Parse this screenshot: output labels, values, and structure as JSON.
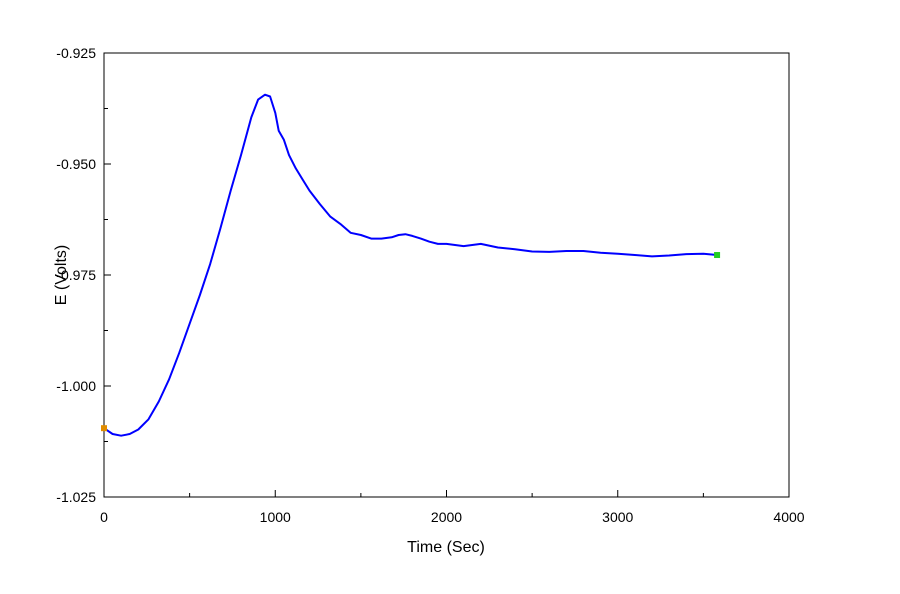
{
  "chart_data": {
    "type": "line",
    "title": "",
    "xlabel": "Time (Sec)",
    "ylabel": "E (Volts)",
    "xlim": [
      0,
      4000
    ],
    "ylim": [
      -1.025,
      -0.925
    ],
    "grid": false,
    "legend": "none",
    "x_ticks": [
      0,
      1000,
      2000,
      3000,
      4000
    ],
    "x_tick_labels": [
      "0",
      "1000",
      "2000",
      "3000",
      "4000"
    ],
    "y_ticks": [
      -0.925,
      -0.95,
      -0.975,
      -1.0,
      -1.025
    ],
    "y_tick_labels": [
      "-0.925",
      "-0.950",
      "-0.975",
      "-1.000",
      "-1.025"
    ],
    "series": [
      {
        "color": "#0000ff",
        "x": [
          0,
          50,
          100,
          150,
          200,
          260,
          320,
          380,
          440,
          500,
          560,
          620,
          680,
          740,
          800,
          860,
          900,
          940,
          970,
          1000,
          1020,
          1050,
          1080,
          1120,
          1160,
          1200,
          1260,
          1320,
          1380,
          1440,
          1500,
          1560,
          1620,
          1680,
          1720,
          1760,
          1800,
          1850,
          1900,
          1950,
          2000,
          2100,
          2200,
          2300,
          2400,
          2500,
          2600,
          2700,
          2800,
          2900,
          3000,
          3100,
          3200,
          3300,
          3400,
          3500,
          3580
        ],
        "y": [
          -1.0095,
          -1.0108,
          -1.0112,
          -1.0108,
          -1.0098,
          -1.0075,
          -1.0035,
          -0.9985,
          -0.9925,
          -0.986,
          -0.9795,
          -0.9725,
          -0.9645,
          -0.956,
          -0.948,
          -0.9395,
          -0.9355,
          -0.9344,
          -0.9348,
          -0.9385,
          -0.9425,
          -0.9445,
          -0.948,
          -0.951,
          -0.9535,
          -0.956,
          -0.959,
          -0.9618,
          -0.9635,
          -0.9655,
          -0.966,
          -0.9668,
          -0.9668,
          -0.9665,
          -0.966,
          -0.9658,
          -0.9662,
          -0.9668,
          -0.9675,
          -0.968,
          -0.968,
          -0.9685,
          -0.968,
          -0.9688,
          -0.9692,
          -0.9697,
          -0.9698,
          -0.9696,
          -0.9696,
          -0.97,
          -0.9702,
          -0.9705,
          -0.9708,
          -0.9706,
          -0.9703,
          -0.9702,
          -0.9705
        ]
      }
    ],
    "markers": [
      {
        "x": 0,
        "y": -1.0095,
        "color": "#e08c00"
      },
      {
        "x": 3580,
        "y": -0.9705,
        "color": "#22cc22"
      }
    ]
  }
}
